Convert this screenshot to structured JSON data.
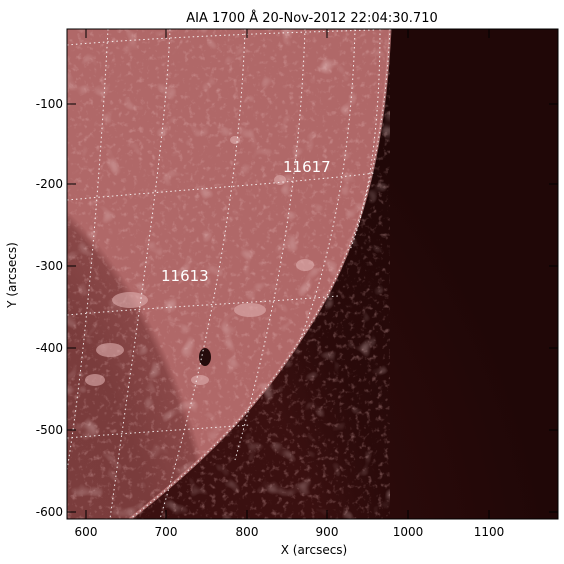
{
  "figure": {
    "title": "AIA 1700 Å 20-Nov-2012 22:04:30.710",
    "xlabel": "X (arcsecs)",
    "ylabel": "Y (arcsecs)",
    "x_ticks": [
      "600",
      "700",
      "800",
      "900",
      "1000",
      "1100"
    ],
    "y_ticks": [
      "-100",
      "-200",
      "-300",
      "-400",
      "-500",
      "-600"
    ],
    "active_regions": [
      {
        "label": "11617"
      },
      {
        "label": "11613"
      }
    ],
    "colors": {
      "disk": "#7a3a3a",
      "limb_bright": "#b06868",
      "space": "#240808",
      "grid": "#ffffff",
      "sunspot": "#1e0606"
    }
  }
}
